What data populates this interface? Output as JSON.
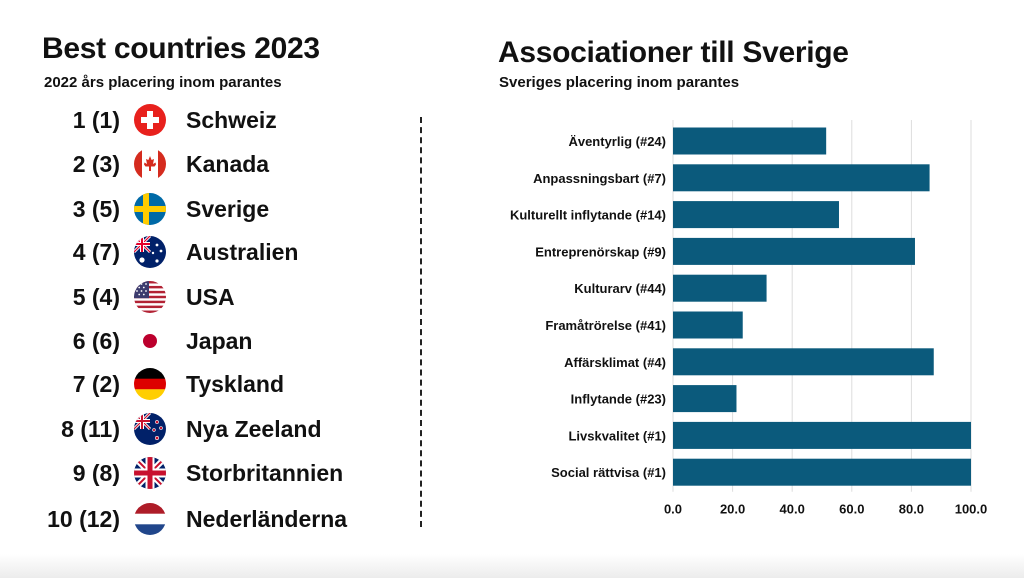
{
  "left": {
    "title": "Best countries 2023",
    "subtitle": "2022 års placering inom parantes",
    "rankings": [
      {
        "rank": "1 (1)",
        "country": "Schweiz",
        "flag": "switzerland-flag-icon"
      },
      {
        "rank": "2 (3)",
        "country": "Kanada",
        "flag": "canada-flag-icon"
      },
      {
        "rank": "3 (5)",
        "country": "Sverige",
        "flag": "sweden-flag-icon"
      },
      {
        "rank": "4 (7)",
        "country": "Australien",
        "flag": "australia-flag-icon"
      },
      {
        "rank": "5 (4)",
        "country": "USA",
        "flag": "usa-flag-icon"
      },
      {
        "rank": "6 (6)",
        "country": "Japan",
        "flag": "japan-flag-icon"
      },
      {
        "rank": "7 (2)",
        "country": "Tyskland",
        "flag": "germany-flag-icon"
      },
      {
        "rank": "8 (11)",
        "country": "Nya Zeeland",
        "flag": "new-zealand-flag-icon"
      },
      {
        "rank": "9 (8)",
        "country": "Storbritannien",
        "flag": "uk-flag-icon"
      },
      {
        "rank": "10 (12)",
        "country": "Nederländerna",
        "flag": "netherlands-flag-icon"
      }
    ]
  },
  "chart_data": {
    "type": "bar",
    "orientation": "horizontal",
    "title": "Associationer till Sverige",
    "subtitle": "Sveriges placering inom parantes",
    "categories": [
      "Äventyrlig (#24)",
      "Anpassningsbart (#7)",
      "Kulturellt inflytande (#14)",
      "Entreprenörskap (#9)",
      "Kulturarv (#44)",
      "Framåtrörelse (#41)",
      "Affärsklimat (#4)",
      "Inflytande (#23)",
      "Livskvalitet (#1)",
      "Social rättvisa (#1)"
    ],
    "values": [
      51.4,
      86.1,
      55.7,
      81.2,
      31.4,
      23.4,
      87.5,
      21.3,
      100.0,
      100.0
    ],
    "xlim": [
      0,
      100
    ],
    "xticks": [
      "0.0",
      "20.0",
      "40.0",
      "60.0",
      "80.0",
      "100.0"
    ],
    "grid": true,
    "legend": "none",
    "bar_color": "#0b5a7c",
    "grid_color": "#dddddd"
  }
}
